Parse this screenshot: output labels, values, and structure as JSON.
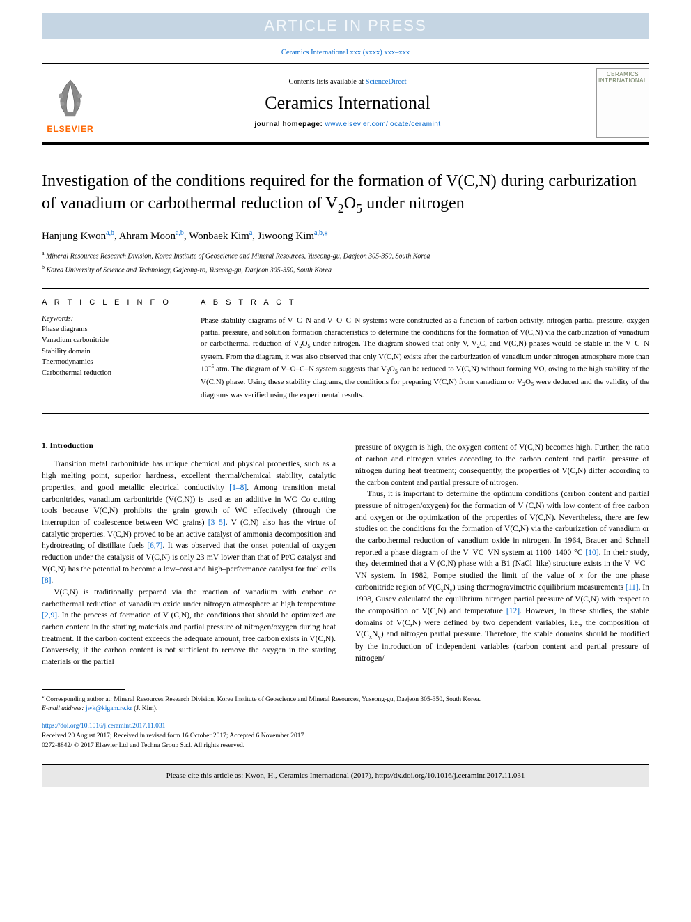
{
  "banner": {
    "text": "ARTICLE IN PRESS"
  },
  "journal_ref": {
    "prefix": "Ceramics International xxx (xxxx) xxx–xxx"
  },
  "header": {
    "contents_prefix": "Contents lists available at ",
    "contents_link": "ScienceDirect",
    "journal_name": "Ceramics International",
    "homepage_label": "journal homepage: ",
    "homepage_url": "www.elsevier.com/locate/ceramint",
    "elsevier_text": "ELSEVIER",
    "cover_text": "CERAMICS INTERNATIONAL"
  },
  "title_html": "Investigation of the conditions required for the formation of V(C,N) during carburization of vanadium or carbothermal reduction of V<sub>2</sub>O<sub>5</sub> under nitrogen",
  "authors_html": "Hanjung Kwon<span class=\"sup\">a,b</span>, Ahram Moon<span class=\"sup\">a,b</span>, Wonbaek Kim<span class=\"sup\">a</span>, Jiwoong Kim<span class=\"sup\">a,b,</span><span class=\"sup ast\">⁎</span>",
  "affiliations": [
    {
      "sup": "a",
      "text": "Mineral Resources Research Division, Korea Institute of Geoscience and Mineral Resources, Yuseong-gu, Daejeon 305-350, South Korea"
    },
    {
      "sup": "b",
      "text": "Korea University of Science and Technology, Gajeong-ro, Yuseong-gu, Daejeon 305-350, South Korea"
    }
  ],
  "article_info": {
    "heading": "A R T I C L E  I N F O",
    "keywords_label": "Keywords:",
    "keywords": [
      "Phase diagrams",
      "Vanadium carbonitride",
      "Stability domain",
      "Thermodynamics",
      "Carbothermal reduction"
    ]
  },
  "abstract": {
    "heading": "A B S T R A C T",
    "text_html": "Phase stability diagrams of V–C–N and V–O–C–N systems were constructed as a function of carbon activity, nitrogen partial pressure, oxygen partial pressure, and solution formation characteristics to determine the conditions for the formation of V(C,N) via the carburization of vanadium or carbothermal reduction of V<sub>2</sub>O<sub>5</sub> under nitrogen. The diagram showed that only V, V<sub>2</sub>C, and V(C,N) phases would be stable in the V–C–N system. From the diagram, it was also observed that only V(C,N) exists after the carburization of vanadium under nitrogen atmosphere more than 10<sup class=\"chem\">−5</sup> atm. The diagram of V–O–C–N system suggests that V<sub>2</sub>O<sub>5</sub> can be reduced to V(C,N) without forming VO, owing to the high stability of the V(C,N) phase. Using these stability diagrams, the conditions for preparing V(C,N) from vanadium or V<sub>2</sub>O<sub>5</sub> were deduced and the validity of the diagrams was verified using the experimental results."
  },
  "body": {
    "section_title": "1. Introduction",
    "p1_html": "Transition metal carbonitride has unique chemical and physical properties, such as a high melting point, superior hardness, excellent thermal/chemical stability, catalytic properties, and good metallic electrical conductivity <span class=\"cite\">[1–8]</span>. Among transition metal carbonitrides, vanadium carbonitride (V(C,N)) is used as an additive in WC–Co cutting tools because V(C,N) prohibits the grain growth of WC effectively (through the interruption of coalescence between WC grains) <span class=\"cite\">[3–5]</span>. V (C,N) also has the virtue of catalytic properties. V(C,N) proved to be an active catalyst of ammonia decomposition and hydrotreating of distillate fuels <span class=\"cite\">[6,7]</span>. It was observed that the onset potential of oxygen reduction under the catalysis of V(C,N) is only 23 mV lower than that of Pt/C catalyst and V(C,N) has the potential to become a low–cost and high–performance catalyst for fuel cells <span class=\"cite\">[8]</span>.",
    "p2_html": "V(C,N) is traditionally prepared via the reaction of vanadium with carbon or carbothermal reduction of vanadium oxide under nitrogen atmosphere at high temperature <span class=\"cite\">[2,9]</span>. In the process of formation of V (C,N), the conditions that should be optimized are carbon content in the starting materials and partial pressure of nitrogen/oxygen during heat treatment. If the carbon content exceeds the adequate amount, free carbon exists in V(C,N). Conversely, if the carbon content is not sufficient to remove the oxygen in the starting materials or the partial",
    "p3_html": "pressure of oxygen is high, the oxygen content of V(C,N) becomes high. Further, the ratio of carbon and nitrogen varies according to the carbon content and partial pressure of nitrogen during heat treatment; consequently, the properties of V(C,N) differ according to the carbon content and partial pressure of nitrogen.",
    "p4_html": "Thus, it is important to determine the optimum conditions (carbon content and partial pressure of nitrogen/oxygen) for the formation of V (C,N) with low content of free carbon and oxygen or the optimization of the properties of V(C,N). Nevertheless, there are few studies on the conditions for the formation of V(C,N) via the carburization of vanadium or the carbothermal reduction of vanadium oxide in nitrogen. In 1964, Brauer and Schnell reported a phase diagram of the V–VC–VN system at 1100–1400 °C <span class=\"cite\">[10]</span>. In their study, they determined that a V (C,N) phase with a B1 (NaCl–like) structure exists in the V–VC–VN system. In 1982, Pompe studied the limit of the value of <i>x</i> for the one–phase carbonitride region of V(C<sub>x</sub>N<sub>y</sub>) using thermogravimetric equilibrium measurements <span class=\"cite\">[11]</span>. In 1998, Gusev calculated the equilibrium nitrogen partial pressure of V(C,N) with respect to the composition of V(C,N) and temperature <span class=\"cite\">[12]</span>. However, in these studies, the stable domains of V(C,N) were defined by two dependent variables, i.e., the composition of V(C<sub>x</sub>N<sub>y</sub>) and nitrogen partial pressure. Therefore, the stable domains should be modified by the introduction of independent variables (carbon content and partial pressure of nitrogen/"
  },
  "footnote": {
    "marker": "⁎",
    "text": " Corresponding author at: Mineral Resources Research Division, Korea Institute of Geoscience and Mineral Resources, Yuseong-gu, Daejeon 305-350, South Korea.",
    "email_label": "E-mail address: ",
    "email": "jwk@kigam.re.kr",
    "email_suffix": " (J. Kim)."
  },
  "doi_block": {
    "doi_url": "https://doi.org/10.1016/j.ceramint.2017.11.031",
    "history": "Received 20 August 2017; Received in revised form 16 October 2017; Accepted 6 November 2017",
    "copyright": "0272-8842/ © 2017 Elsevier Ltd and Techna Group S.r.l. All rights reserved."
  },
  "cite_box": {
    "text": "Please cite this article as: Kwon, H., Ceramics International (2017), http://dx.doi.org/10.1016/j.ceramint.2017.11.031"
  },
  "colors": {
    "banner_bg": "#c5d5e3",
    "banner_text": "#f5f9fc",
    "link": "#0066cc",
    "elsevier_orange": "#ff6600",
    "citebox_bg": "#e8e8e8"
  }
}
